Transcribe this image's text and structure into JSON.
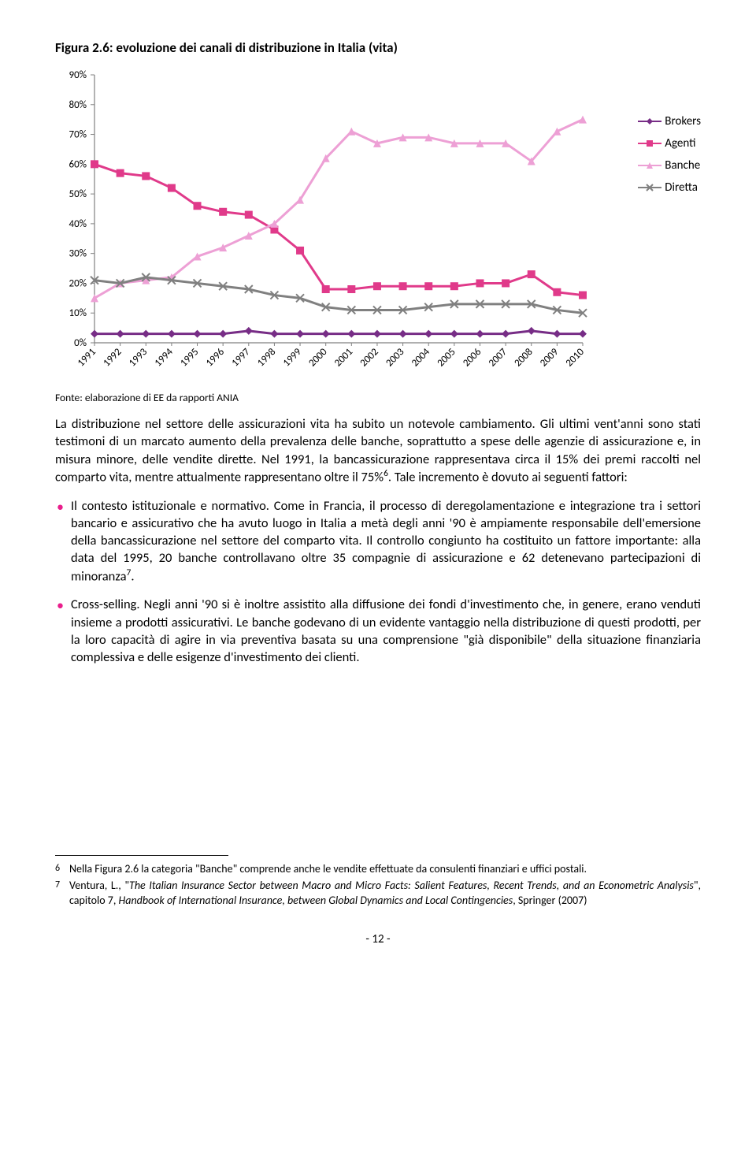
{
  "figure": {
    "title": "Figura 2.6: evoluzione dei canali di distribuzione in Italia (vita)",
    "source": "Fonte: elaborazione di EE da rapporti ANIA",
    "chart": {
      "type": "line",
      "background_color": "#ffffff",
      "axis_color": "#808080",
      "grid_color": "#e0e0e0",
      "label_fontsize": 13,
      "ylim": [
        0,
        90
      ],
      "ytick_step": 10,
      "yticks": [
        "0%",
        "10%",
        "20%",
        "30%",
        "40%",
        "50%",
        "60%",
        "70%",
        "80%",
        "90%"
      ],
      "years": [
        "1991",
        "1992",
        "1993",
        "1994",
        "1995",
        "1996",
        "1997",
        "1998",
        "1999",
        "2000",
        "2001",
        "2002",
        "2003",
        "2004",
        "2005",
        "2006",
        "2007",
        "2008",
        "2009",
        "2010"
      ],
      "line_width": 3,
      "marker_size": 6,
      "series": {
        "brokers": {
          "label": "Brokers",
          "color": "#772d86",
          "marker": "diamond",
          "values": [
            3,
            3,
            3,
            3,
            3,
            3,
            4,
            3,
            3,
            3,
            3,
            3,
            3,
            3,
            3,
            3,
            3,
            4,
            3,
            3
          ]
        },
        "agenti": {
          "label": "Agenti",
          "color": "#e03a8a",
          "marker": "square",
          "values": [
            60,
            57,
            56,
            52,
            46,
            44,
            43,
            38,
            31,
            18,
            18,
            19,
            19,
            19,
            19,
            20,
            20,
            23,
            17,
            16
          ]
        },
        "banche": {
          "label": "Banche",
          "color": "#eda0d5",
          "marker": "triangle",
          "values": [
            15,
            20,
            21,
            22,
            29,
            32,
            36,
            40,
            48,
            62,
            71,
            67,
            69,
            69,
            67,
            67,
            67,
            61,
            71,
            75
          ]
        },
        "diretta": {
          "label": "Diretta",
          "color": "#808080",
          "marker": "cross",
          "values": [
            21,
            20,
            22,
            21,
            20,
            19,
            18,
            16,
            15,
            12,
            11,
            11,
            11,
            12,
            13,
            13,
            13,
            13,
            11,
            10
          ]
        }
      },
      "legend_order": [
        "brokers",
        "agenti",
        "banche",
        "diretta"
      ]
    }
  },
  "paragraph1": "La distribuzione nel settore delle assicurazioni vita ha subito un notevole cambiamento. Gli ultimi vent'anni sono stati testimoni di un marcato aumento della prevalenza delle banche, soprattutto a spese delle agenzie di assicurazione e, in misura minore, delle vendite dirette. Nel 1991, la bancassicurazione rappresentava circa il 15% dei premi raccolti nel comparto vita, mentre attualmente rappresentano oltre il 75%",
  "paragraph1_tail": ". Tale incremento è dovuto ai seguenti fattori:",
  "fn6_marker": "6",
  "bullet1": "Il contesto istituzionale e normativo. Come in Francia, il processo di deregolamentazione e integrazione tra i settori bancario e assicurativo che ha avuto luogo in Italia a metà degli anni '90 è ampiamente responsabile dell'emersione della bancassicurazione nel settore del comparto vita. Il controllo congiunto ha costituito un fattore importante: alla data del 1995, 20 banche controllavano oltre 35 compagnie di assicurazione e 62 detenevano partecipazioni di minoranza",
  "fn7_marker": "7",
  "bullet1_tail": ".",
  "bullet2": "Cross-selling. Negli anni '90 si è inoltre assistito alla diffusione dei fondi d'investimento che, in genere, erano venduti insieme a prodotti assicurativi. Le banche godevano di un evidente vantaggio nella distribuzione di questi prodotti, per la loro capacità di agire in via preventiva basata su una comprensione \"già disponibile\" della situazione finanziaria complessiva e delle esigenze d'investimento dei clienti.",
  "footnotes": {
    "fn6": {
      "num": "6",
      "text": "Nella Figura 2.6 la categoria \"Banche\" comprende anche le vendite effettuate da consulenti finanziari e uffici postali."
    },
    "fn7": {
      "num": "7",
      "prefix": "Ventura, L., \"",
      "title_italic": "The Italian Insurance Sector between Macro and Micro Facts: Salient Features, Recent Trends, and an Econometric Analysis",
      "mid": "\", capitolo 7, ",
      "book_italic": "Handbook of International Insurance, between Global Dynamics and Local Contingencies",
      "suffix": ", Springer (2007)"
    }
  },
  "page_number": "- 12 -"
}
